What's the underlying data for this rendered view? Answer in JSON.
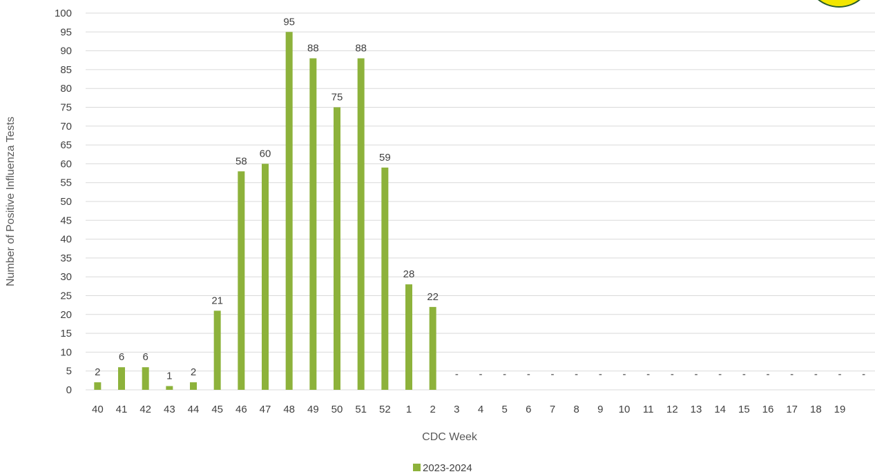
{
  "chart_data": {
    "type": "bar",
    "categories": [
      "40",
      "41",
      "42",
      "43",
      "44",
      "45",
      "46",
      "47",
      "48",
      "49",
      "50",
      "51",
      "52",
      "1",
      "2",
      "3",
      "4",
      "5",
      "6",
      "7",
      "8",
      "9",
      "10",
      "11",
      "12",
      "13",
      "14",
      "15",
      "16",
      "17",
      "18",
      "19",
      ""
    ],
    "series": [
      {
        "name": "2023-2024",
        "color": "#8db23b",
        "values": [
          2,
          6,
          6,
          1,
          2,
          21,
          58,
          60,
          95,
          88,
          75,
          88,
          59,
          28,
          22,
          null,
          null,
          null,
          null,
          null,
          null,
          null,
          null,
          null,
          null,
          null,
          null,
          null,
          null,
          null,
          null,
          null,
          null
        ],
        "labels": [
          "2",
          "6",
          "6",
          "1",
          "2",
          "21",
          "58",
          "60",
          "95",
          "88",
          "75",
          "88",
          "59",
          "28",
          "22",
          "-",
          "-",
          "-",
          "-",
          "-",
          "-",
          "-",
          "-",
          "-",
          "-",
          "-",
          "-",
          "-",
          "-",
          "-",
          "-",
          "-",
          "-"
        ]
      }
    ],
    "xlabel": "CDC Week",
    "ylabel": "Number of Positive Influenza Tests",
    "ylim": [
      0,
      100
    ],
    "ytick_step": 5,
    "grid": true,
    "legend": "bottom-center"
  }
}
